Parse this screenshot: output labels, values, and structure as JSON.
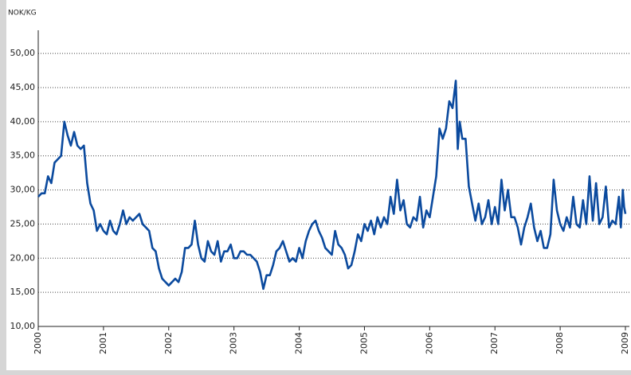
{
  "chart_data": {
    "type": "line",
    "y_label": "NOK/KG",
    "x": [
      2000.0,
      2000.05,
      2000.1,
      2000.15,
      2000.2,
      2000.25,
      2000.3,
      2000.35,
      2000.4,
      2000.45,
      2000.5,
      2000.55,
      2000.6,
      2000.65,
      2000.7,
      2000.75,
      2000.8,
      2000.85,
      2000.9,
      2000.95,
      2001.0,
      2001.05,
      2001.1,
      2001.15,
      2001.2,
      2001.25,
      2001.3,
      2001.35,
      2001.4,
      2001.45,
      2001.5,
      2001.55,
      2001.6,
      2001.65,
      2001.7,
      2001.75,
      2001.8,
      2001.85,
      2001.9,
      2001.95,
      2002.0,
      2002.05,
      2002.1,
      2002.15,
      2002.2,
      2002.25,
      2002.3,
      2002.35,
      2002.4,
      2002.45,
      2002.5,
      2002.55,
      2002.6,
      2002.65,
      2002.7,
      2002.75,
      2002.8,
      2002.85,
      2002.9,
      2002.95,
      2003.0,
      2003.05,
      2003.1,
      2003.15,
      2003.2,
      2003.25,
      2003.3,
      2003.35,
      2003.4,
      2003.45,
      2003.5,
      2003.55,
      2003.6,
      2003.65,
      2003.7,
      2003.75,
      2003.8,
      2003.85,
      2003.9,
      2003.95,
      2004.0,
      2004.05,
      2004.1,
      2004.15,
      2004.2,
      2004.25,
      2004.3,
      2004.35,
      2004.4,
      2004.45,
      2004.5,
      2004.55,
      2004.6,
      2004.65,
      2004.7,
      2004.75,
      2004.8,
      2004.85,
      2004.9,
      2004.95,
      2005.0,
      2005.05,
      2005.1,
      2005.15,
      2005.2,
      2005.25,
      2005.3,
      2005.35,
      2005.4,
      2005.45,
      2005.5,
      2005.55,
      2005.6,
      2005.65,
      2005.7,
      2005.75,
      2005.8,
      2005.85,
      2005.9,
      2005.95,
      2006.0,
      2006.05,
      2006.1,
      2006.15,
      2006.2,
      2006.25,
      2006.3,
      2006.35,
      2006.4,
      2006.43,
      2006.46,
      2006.5,
      2006.55,
      2006.6,
      2006.65,
      2006.7,
      2006.75,
      2006.8,
      2006.85,
      2006.9,
      2006.95,
      2007.0,
      2007.05,
      2007.1,
      2007.15,
      2007.2,
      2007.25,
      2007.3,
      2007.35,
      2007.4,
      2007.45,
      2007.5,
      2007.55,
      2007.6,
      2007.65,
      2007.7,
      2007.75,
      2007.8,
      2007.85,
      2007.9,
      2007.95,
      2008.0,
      2008.05,
      2008.1,
      2008.15,
      2008.2,
      2008.25,
      2008.3,
      2008.35,
      2008.4,
      2008.45,
      2008.5,
      2008.55,
      2008.6,
      2008.65,
      2008.7,
      2008.75,
      2008.8,
      2008.85,
      2008.9,
      2008.93,
      2008.96,
      2008.98,
      2009.0
    ],
    "series": [
      {
        "color": "#0b4a9e",
        "values": [
          29,
          29.5,
          29.5,
          32,
          31,
          34,
          34.5,
          35,
          40,
          38,
          36.5,
          38.5,
          36.5,
          36,
          36.5,
          31,
          28,
          27,
          24,
          25,
          24,
          23.5,
          25.5,
          24,
          23.5,
          25,
          27,
          25,
          26,
          25.5,
          26,
          26.5,
          25,
          24.5,
          24,
          21.5,
          21,
          18.5,
          17,
          16.5,
          16,
          16.5,
          17,
          16.5,
          18,
          21.5,
          21.5,
          22,
          25.5,
          22,
          20,
          19.5,
          22.5,
          21,
          20.5,
          22.5,
          19.5,
          21,
          21,
          22,
          20,
          20,
          21,
          21,
          20.5,
          20.5,
          20,
          19.5,
          18,
          15.5,
          17.5,
          17.5,
          19,
          21,
          21.5,
          22.5,
          21,
          19.5,
          20,
          19.5,
          21.5,
          20,
          22.5,
          24,
          25,
          25.5,
          24,
          23,
          21.5,
          21,
          20.5,
          24,
          22,
          21.5,
          20.5,
          18.5,
          19,
          21,
          23.5,
          22.5,
          25,
          24,
          25.5,
          23.5,
          26,
          24.5,
          26,
          25,
          29,
          26.5,
          31.5,
          27,
          28.5,
          25,
          24.5,
          26,
          25.5,
          29,
          24.5,
          27,
          26,
          29,
          32,
          39,
          37.5,
          39,
          43,
          42,
          46,
          36,
          40,
          37.5,
          37.5,
          30.5,
          28,
          25.5,
          28,
          25,
          26,
          28.5,
          25,
          27.5,
          25,
          31.5,
          27,
          30,
          26,
          26,
          24.5,
          22,
          24.5,
          26,
          28,
          24.5,
          22.5,
          24,
          21.5,
          21.5,
          23.5,
          31.5,
          27,
          25,
          24,
          26,
          24.5,
          29,
          25,
          24.5,
          28.5,
          25,
          32,
          25.5,
          31,
          25,
          26,
          30.5,
          24.5,
          25.5,
          25,
          29,
          24.5,
          30,
          27.5,
          26.5
        ]
      }
    ],
    "xlim": [
      2000,
      2009
    ],
    "xticks": [
      2000,
      2001,
      2002,
      2003,
      2004,
      2005,
      2006,
      2007,
      2008,
      2009
    ],
    "ylim": [
      10,
      53.4
    ],
    "yticks": [
      {
        "value": 10,
        "label": "10,00"
      },
      {
        "value": 15,
        "label": "15,00"
      },
      {
        "value": 20,
        "label": "20,00"
      },
      {
        "value": 25,
        "label": "25,00"
      },
      {
        "value": 30,
        "label": "30,00"
      },
      {
        "value": 35,
        "label": "35,00"
      },
      {
        "value": 40,
        "label": "40,00"
      },
      {
        "value": 45,
        "label": "45,00"
      },
      {
        "value": 50,
        "label": "50,00"
      }
    ],
    "grid": true
  }
}
